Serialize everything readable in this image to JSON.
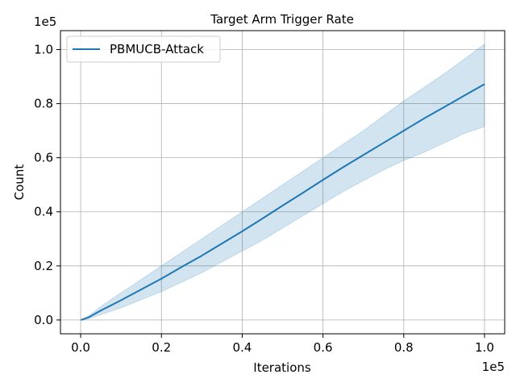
{
  "chart_data": {
    "type": "line",
    "title": "Target Arm Trigger Rate",
    "xlabel": "Iterations",
    "ylabel": "Count",
    "x_offset_label": "1e5",
    "y_offset_label": "1e5",
    "xlim": [
      -0.05,
      1.05
    ],
    "ylim": [
      -0.051,
      1.07
    ],
    "x_ticks": [
      0.0,
      0.2,
      0.4,
      0.6,
      0.8,
      1.0
    ],
    "x_tick_labels": [
      "0.0",
      "0.2",
      "0.4",
      "0.6",
      "0.8",
      "1.0"
    ],
    "y_ticks": [
      0.0,
      0.2,
      0.4,
      0.6,
      0.8,
      1.0
    ],
    "y_tick_labels": [
      "0.0",
      "0.2",
      "0.4",
      "0.6",
      "0.8",
      "1.0"
    ],
    "grid": true,
    "legend_position": "top-left",
    "series": [
      {
        "name": "PBMUCB-Attack",
        "color": "#1f77b4",
        "x": [
          0.0,
          0.02,
          0.05,
          0.1,
          0.15,
          0.2,
          0.25,
          0.3,
          0.35,
          0.4,
          0.45,
          0.5,
          0.55,
          0.6,
          0.65,
          0.7,
          0.75,
          0.8,
          0.85,
          0.9,
          0.95,
          1.0
        ],
        "y": [
          0.0,
          0.01,
          0.035,
          0.073,
          0.113,
          0.153,
          0.196,
          0.238,
          0.283,
          0.328,
          0.375,
          0.423,
          0.47,
          0.518,
          0.565,
          0.61,
          0.655,
          0.7,
          0.745,
          0.787,
          0.83,
          0.872
        ],
        "band_lower": [
          0.0,
          0.005,
          0.02,
          0.045,
          0.075,
          0.105,
          0.14,
          0.175,
          0.215,
          0.255,
          0.295,
          0.34,
          0.385,
          0.43,
          0.475,
          0.515,
          0.555,
          0.59,
          0.62,
          0.655,
          0.69,
          0.715
        ],
        "band_upper": [
          0.0,
          0.015,
          0.05,
          0.1,
          0.15,
          0.2,
          0.25,
          0.3,
          0.35,
          0.4,
          0.45,
          0.5,
          0.55,
          0.6,
          0.65,
          0.7,
          0.755,
          0.81,
          0.86,
          0.91,
          0.965,
          1.02
        ],
        "band_color": "#1f77b4",
        "band_opacity": 0.2
      }
    ]
  }
}
